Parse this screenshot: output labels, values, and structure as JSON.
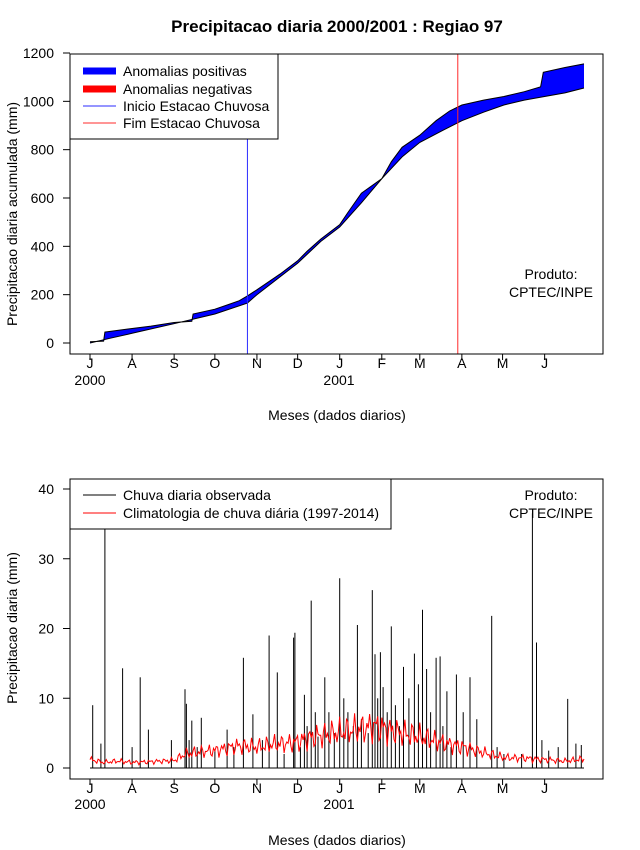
{
  "chart_data": [
    {
      "type": "area",
      "title": "Precipitacao diaria 2000/2001 : Regiao 97",
      "xlabel": "Meses (dados diarios)",
      "ylabel": "Precipitacao diaria acumulada (mm)",
      "ylim": [
        0,
        1200
      ],
      "yticks": [
        "0",
        "200",
        "400",
        "600",
        "800",
        "1000",
        "1200"
      ],
      "months": [
        "J",
        "A",
        "S",
        "O",
        "N",
        "D",
        "J",
        "F",
        "M",
        "A",
        "M",
        "J"
      ],
      "years": [
        "2000",
        "2001"
      ],
      "legend": {
        "position": "top-left",
        "entries": [
          "Anomalias positivas",
          "Anomalias negativas",
          "Inicio Estacao Chuvosa",
          "Fim Estacao Chuvosa"
        ]
      },
      "note": [
        "Produto:",
        "CPTEC/INPE"
      ],
      "rainy_season_start_day": 116,
      "rainy_season_end_day": 271,
      "climatology_cumulative": [
        {
          "day": 0,
          "value": 0
        },
        {
          "day": 15,
          "value": 20
        },
        {
          "day": 31,
          "value": 40
        },
        {
          "day": 62,
          "value": 80
        },
        {
          "day": 92,
          "value": 120
        },
        {
          "day": 116,
          "value": 165
        },
        {
          "day": 123,
          "value": 200
        },
        {
          "day": 153,
          "value": 330
        },
        {
          "day": 170,
          "value": 420
        },
        {
          "day": 184,
          "value": 480
        },
        {
          "day": 200,
          "value": 580
        },
        {
          "day": 215,
          "value": 680
        },
        {
          "day": 230,
          "value": 770
        },
        {
          "day": 243,
          "value": 830
        },
        {
          "day": 260,
          "value": 880
        },
        {
          "day": 274,
          "value": 920
        },
        {
          "day": 290,
          "value": 955
        },
        {
          "day": 305,
          "value": 985
        },
        {
          "day": 320,
          "value": 1005
        },
        {
          "day": 335,
          "value": 1020
        },
        {
          "day": 350,
          "value": 1035
        },
        {
          "day": 364,
          "value": 1055
        }
      ],
      "observed_cumulative": [
        {
          "day": 0,
          "value": 5
        },
        {
          "day": 10,
          "value": 8
        },
        {
          "day": 11,
          "value": 45
        },
        {
          "day": 31,
          "value": 60
        },
        {
          "day": 45,
          "value": 70
        },
        {
          "day": 62,
          "value": 85
        },
        {
          "day": 75,
          "value": 90
        },
        {
          "day": 76,
          "value": 120
        },
        {
          "day": 92,
          "value": 140
        },
        {
          "day": 100,
          "value": 155
        },
        {
          "day": 110,
          "value": 175
        },
        {
          "day": 116,
          "value": 195
        },
        {
          "day": 123,
          "value": 220
        },
        {
          "day": 140,
          "value": 285
        },
        {
          "day": 153,
          "value": 340
        },
        {
          "day": 160,
          "value": 380
        },
        {
          "day": 170,
          "value": 430
        },
        {
          "day": 184,
          "value": 490
        },
        {
          "day": 190,
          "value": 540
        },
        {
          "day": 200,
          "value": 620
        },
        {
          "day": 215,
          "value": 680
        },
        {
          "day": 222,
          "value": 750
        },
        {
          "day": 230,
          "value": 810
        },
        {
          "day": 243,
          "value": 860
        },
        {
          "day": 255,
          "value": 920
        },
        {
          "day": 265,
          "value": 960
        },
        {
          "day": 274,
          "value": 985
        },
        {
          "day": 290,
          "value": 1005
        },
        {
          "day": 305,
          "value": 1020
        },
        {
          "day": 320,
          "value": 1040
        },
        {
          "day": 332,
          "value": 1060
        },
        {
          "day": 334,
          "value": 1120
        },
        {
          "day": 350,
          "value": 1140
        },
        {
          "day": 364,
          "value": 1155
        }
      ]
    },
    {
      "type": "line",
      "xlabel": "Meses (dados diarios)",
      "ylabel": "Precipitacao diaria (mm)",
      "ylim": [
        0,
        40
      ],
      "yticks": [
        "0",
        "10",
        "20",
        "30",
        "40"
      ],
      "months": [
        "J",
        "A",
        "S",
        "O",
        "N",
        "D",
        "J",
        "F",
        "M",
        "A",
        "M",
        "J"
      ],
      "years": [
        "2000",
        "2001"
      ],
      "legend": {
        "position": "top-left",
        "entries": [
          "Chuva diaria observada",
          "Climatologia de chuva diária (1997-2014)"
        ]
      },
      "note": [
        "Produto:",
        "CPTEC/INPE"
      ],
      "observed_daily": [
        {
          "day": 2,
          "value": 9
        },
        {
          "day": 8,
          "value": 3.5
        },
        {
          "day": 11,
          "value": 38
        },
        {
          "day": 24,
          "value": 14.3
        },
        {
          "day": 31,
          "value": 3
        },
        {
          "day": 37,
          "value": 13
        },
        {
          "day": 43,
          "value": 5.5
        },
        {
          "day": 60,
          "value": 4
        },
        {
          "day": 70,
          "value": 11.3
        },
        {
          "day": 71,
          "value": 9.2
        },
        {
          "day": 73,
          "value": 4
        },
        {
          "day": 75,
          "value": 6.8
        },
        {
          "day": 79,
          "value": 3
        },
        {
          "day": 82,
          "value": 7.2
        },
        {
          "day": 92,
          "value": 2.5
        },
        {
          "day": 101,
          "value": 5.5
        },
        {
          "day": 106,
          "value": 3
        },
        {
          "day": 113,
          "value": 15.8
        },
        {
          "day": 120,
          "value": 7.7
        },
        {
          "day": 127,
          "value": 4
        },
        {
          "day": 132,
          "value": 19
        },
        {
          "day": 138,
          "value": 13.7
        },
        {
          "day": 143,
          "value": 2
        },
        {
          "day": 150,
          "value": 18.7
        },
        {
          "day": 151,
          "value": 19.4
        },
        {
          "day": 155,
          "value": 3
        },
        {
          "day": 158,
          "value": 10.5
        },
        {
          "day": 160,
          "value": 6
        },
        {
          "day": 163,
          "value": 24
        },
        {
          "day": 166,
          "value": 8
        },
        {
          "day": 168,
          "value": 4.5
        },
        {
          "day": 173,
          "value": 13
        },
        {
          "day": 176,
          "value": 8
        },
        {
          "day": 180,
          "value": 5
        },
        {
          "day": 184,
          "value": 27.2
        },
        {
          "day": 187,
          "value": 10
        },
        {
          "day": 190,
          "value": 8
        },
        {
          "day": 194,
          "value": 6
        },
        {
          "day": 197,
          "value": 20.5
        },
        {
          "day": 200,
          "value": 7
        },
        {
          "day": 205,
          "value": 5
        },
        {
          "day": 208,
          "value": 25.5
        },
        {
          "day": 210,
          "value": 16.3
        },
        {
          "day": 212,
          "value": 10
        },
        {
          "day": 214,
          "value": 16.6
        },
        {
          "day": 216,
          "value": 11.6
        },
        {
          "day": 219,
          "value": 8
        },
        {
          "day": 222,
          "value": 20.3
        },
        {
          "day": 225,
          "value": 9
        },
        {
          "day": 228,
          "value": 6
        },
        {
          "day": 231,
          "value": 14.5
        },
        {
          "day": 235,
          "value": 10
        },
        {
          "day": 239,
          "value": 16.4
        },
        {
          "day": 242,
          "value": 12
        },
        {
          "day": 245,
          "value": 22.7
        },
        {
          "day": 248,
          "value": 14.2
        },
        {
          "day": 251,
          "value": 8
        },
        {
          "day": 255,
          "value": 15.8
        },
        {
          "day": 258,
          "value": 16
        },
        {
          "day": 260,
          "value": 6
        },
        {
          "day": 263,
          "value": 11
        },
        {
          "day": 266,
          "value": 3
        },
        {
          "day": 270,
          "value": 13.4
        },
        {
          "day": 275,
          "value": 8
        },
        {
          "day": 280,
          "value": 13
        },
        {
          "day": 285,
          "value": 7
        },
        {
          "day": 296,
          "value": 21.8
        },
        {
          "day": 300,
          "value": 3
        },
        {
          "day": 305,
          "value": 2
        },
        {
          "day": 318,
          "value": 2
        },
        {
          "day": 326,
          "value": 36.5
        },
        {
          "day": 329,
          "value": 18
        },
        {
          "day": 333,
          "value": 4
        },
        {
          "day": 338,
          "value": 2.5
        },
        {
          "day": 345,
          "value": 3
        },
        {
          "day": 352,
          "value": 9.9
        },
        {
          "day": 358,
          "value": 3.5
        },
        {
          "day": 362,
          "value": 3.3
        }
      ],
      "climatology_daily": [
        {
          "day": 0,
          "value": 1.2
        },
        {
          "day": 10,
          "value": 0.8
        },
        {
          "day": 20,
          "value": 1.0
        },
        {
          "day": 31,
          "value": 0.8
        },
        {
          "day": 45,
          "value": 0.9
        },
        {
          "day": 62,
          "value": 1.1
        },
        {
          "day": 70,
          "value": 2.0
        },
        {
          "day": 80,
          "value": 2.3
        },
        {
          "day": 92,
          "value": 2.5
        },
        {
          "day": 100,
          "value": 2.8
        },
        {
          "day": 110,
          "value": 3.2
        },
        {
          "day": 123,
          "value": 3.0
        },
        {
          "day": 135,
          "value": 3.4
        },
        {
          "day": 150,
          "value": 3.6
        },
        {
          "day": 165,
          "value": 4.5
        },
        {
          "day": 180,
          "value": 5.0
        },
        {
          "day": 195,
          "value": 5.5
        },
        {
          "day": 210,
          "value": 6.0
        },
        {
          "day": 225,
          "value": 5.2
        },
        {
          "day": 243,
          "value": 4.5
        },
        {
          "day": 260,
          "value": 3.6
        },
        {
          "day": 275,
          "value": 3.0
        },
        {
          "day": 290,
          "value": 2.2
        },
        {
          "day": 305,
          "value": 1.5
        },
        {
          "day": 320,
          "value": 1.4
        },
        {
          "day": 335,
          "value": 1.2
        },
        {
          "day": 350,
          "value": 1.0
        },
        {
          "day": 364,
          "value": 1.3
        }
      ]
    }
  ]
}
